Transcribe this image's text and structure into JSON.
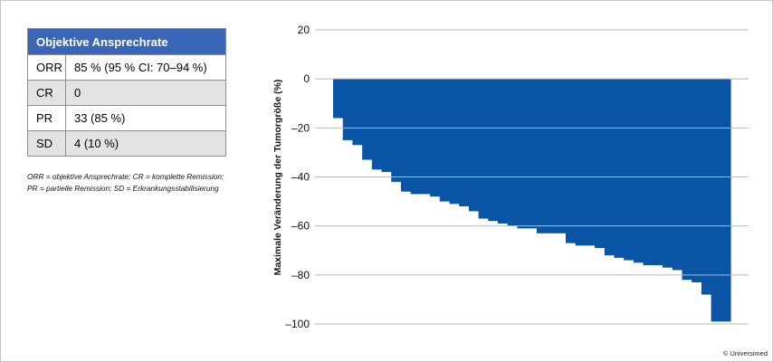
{
  "table": {
    "header": "Objektive Ansprechrate",
    "rows": [
      {
        "key": "ORR",
        "value": "85 % (95 % CI: 70–94 %)"
      },
      {
        "key": "CR",
        "value": "0"
      },
      {
        "key": "PR",
        "value": "33 (85 %)"
      },
      {
        "key": "SD",
        "value": "4 (10 %)"
      }
    ]
  },
  "footnote": {
    "line1": "ORR = objektive Ansprechrate; CR = komplette Remission;",
    "line2": "PR = partielle Remission; SD = Erkrankungsstabilisierung"
  },
  "copyright": "© Universimed",
  "chart_data": {
    "type": "bar",
    "title": "",
    "xlabel": "",
    "ylabel": "Maximale Veränderung der Tumorgröße (%)",
    "ylim": [
      -100,
      20
    ],
    "yticks": [
      20,
      0,
      -20,
      -40,
      -60,
      -80,
      -100
    ],
    "ytick_labels": [
      "20",
      "0",
      "–20",
      "–40",
      "–60",
      "–80",
      "–100"
    ],
    "grid": false,
    "color": "#0a54a6",
    "values": [
      -16,
      -25,
      -27,
      -33,
      -37,
      -38,
      -42,
      -46,
      -47,
      -47,
      -48,
      -50,
      -51,
      -52,
      -54,
      -57,
      -58,
      -59,
      -60,
      -61,
      -61,
      -63,
      -63,
      -63,
      -67,
      -68,
      -68,
      -69,
      -72,
      -73,
      -74,
      -75,
      -76,
      -76,
      -77,
      -78,
      -82,
      -83,
      -88,
      -99,
      -99
    ]
  }
}
